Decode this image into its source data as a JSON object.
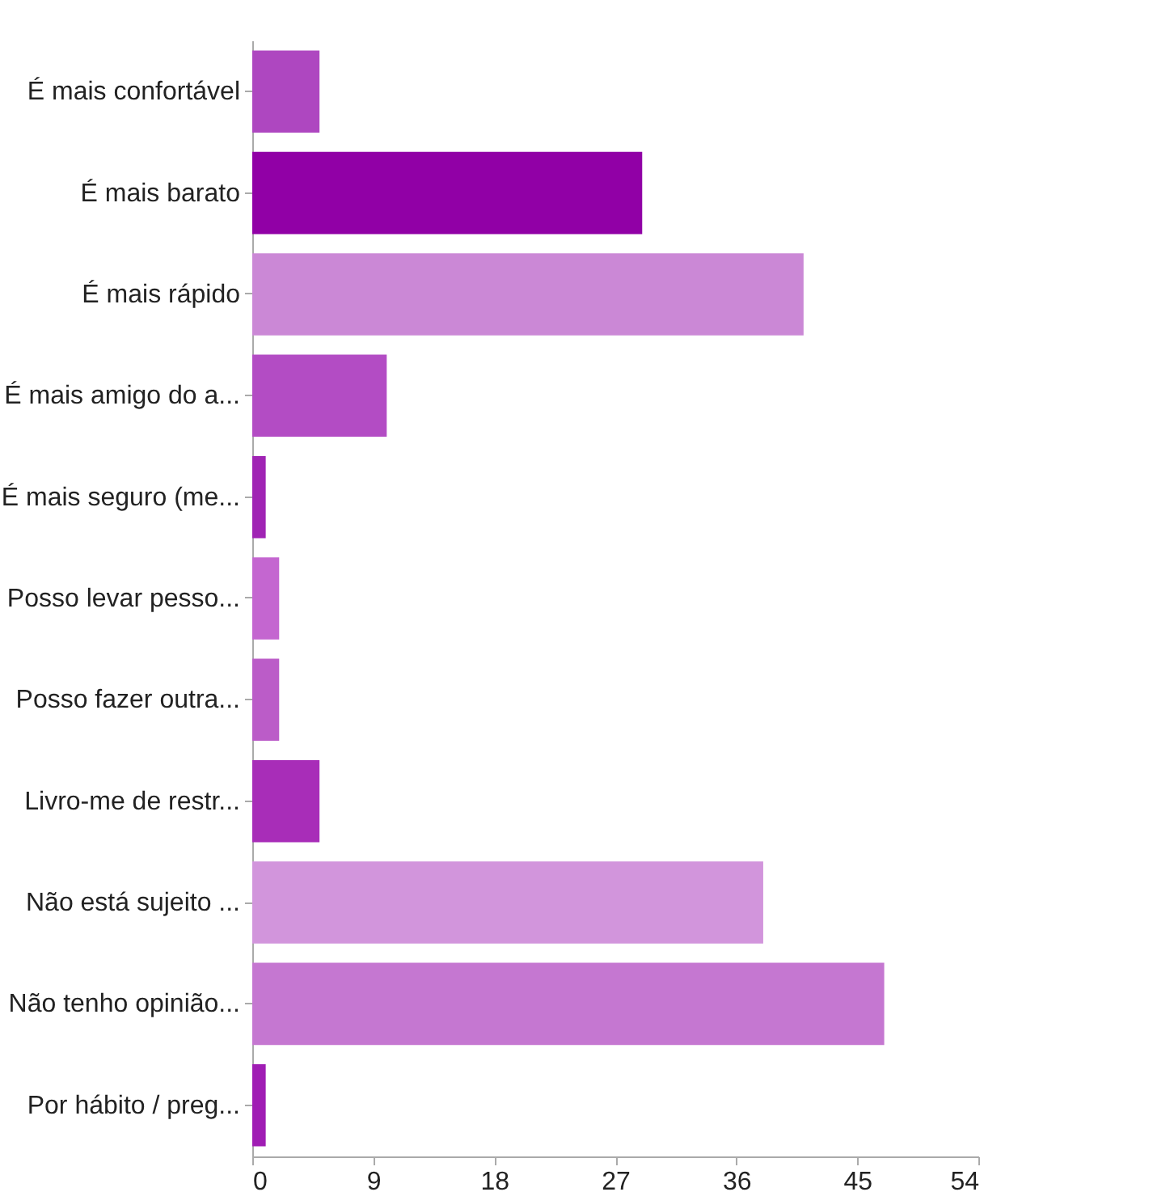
{
  "chart_data": {
    "type": "bar",
    "orientation": "horizontal",
    "categories": [
      "É mais confortável",
      "É mais barato",
      "É mais rápido",
      "É mais amigo do a...",
      "É mais seguro (me...",
      "Posso levar pesso...",
      "Posso fazer outra...",
      "Livro-me de restr...",
      "Não está sujeito ...",
      "Não tenho opinião...",
      "Por hábito / preg..."
    ],
    "values": [
      5,
      29,
      41,
      10,
      1,
      2,
      2,
      5,
      38,
      47,
      1
    ],
    "colors": [
      "#ae47c0",
      "#9100a6",
      "#cb88d6",
      "#b34cc4",
      "#a024b4",
      "#c466d0",
      "#bb5cc8",
      "#a82db8",
      "#d295dc",
      "#c577d1",
      "#a01db4"
    ],
    "xlim": [
      0,
      54
    ],
    "xticks": [
      0,
      9,
      18,
      27,
      36,
      45,
      54
    ],
    "grid": false
  }
}
